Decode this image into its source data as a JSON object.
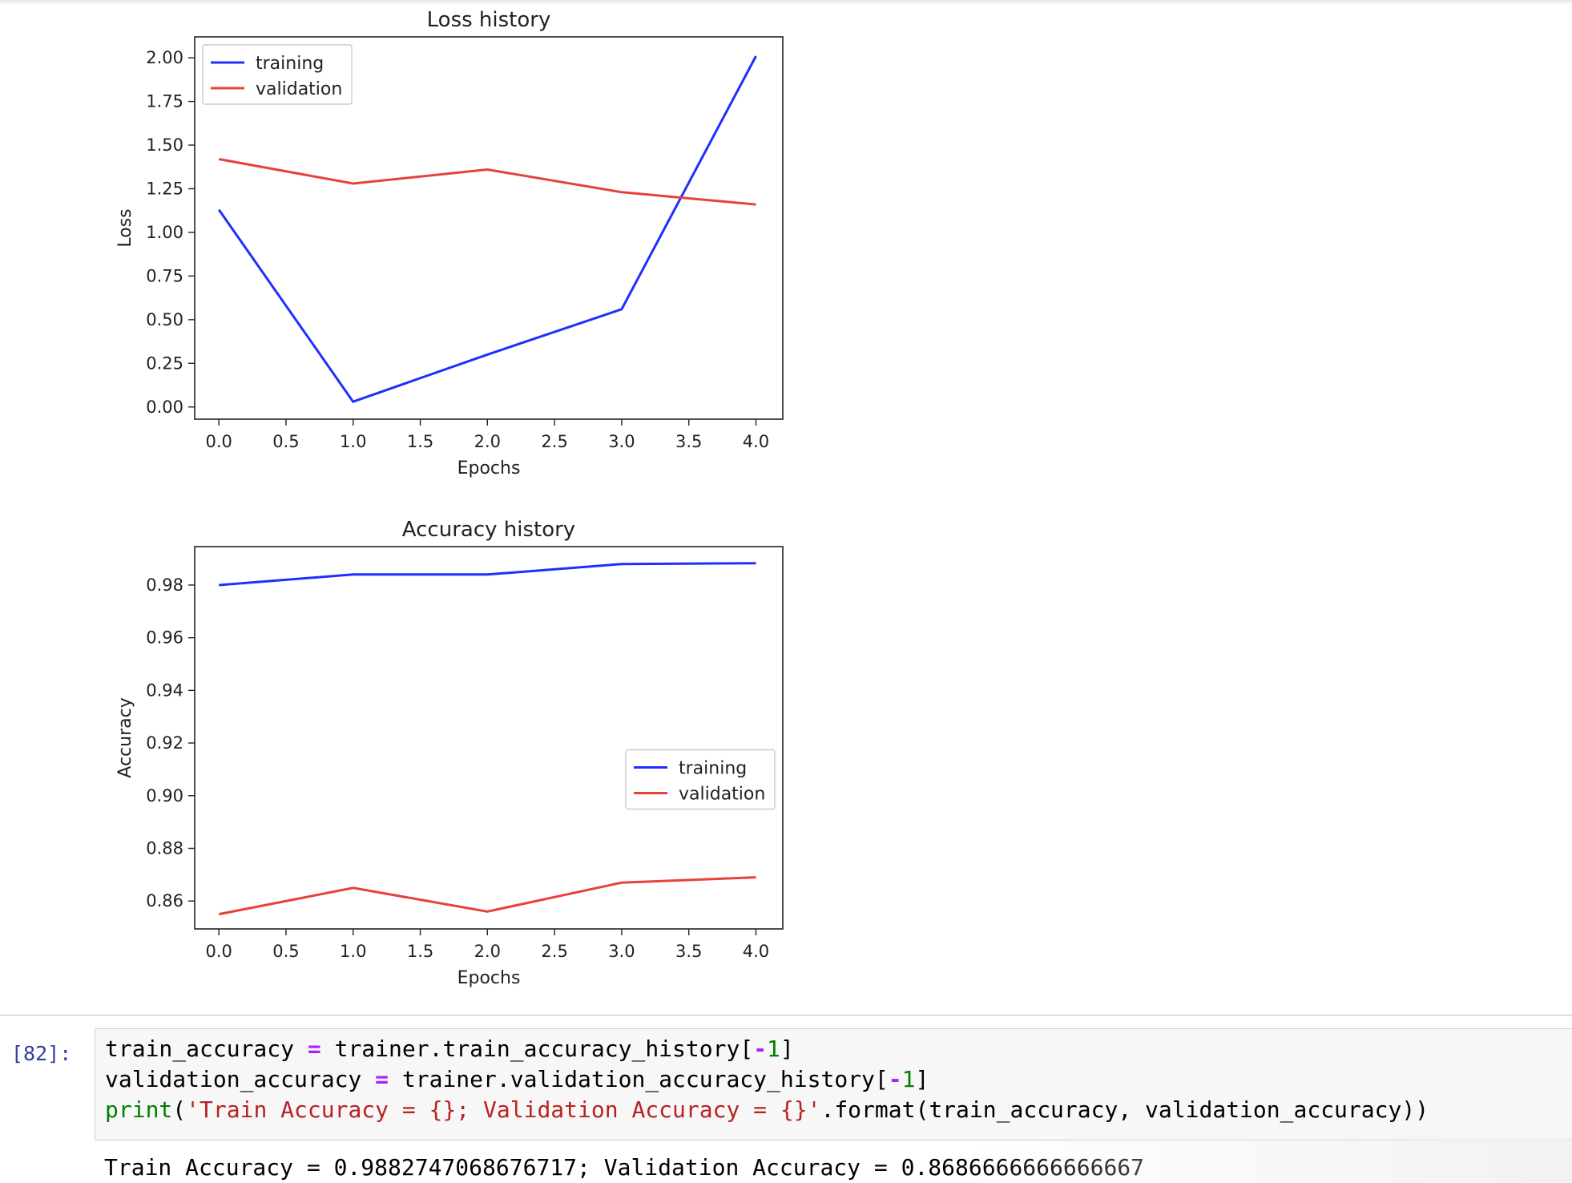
{
  "colors": {
    "training": "#1f2fff",
    "validation": "#e8413a",
    "prompt": "#303f9f"
  },
  "chart_data": [
    {
      "type": "line",
      "title": "Loss history",
      "xlabel": "Epochs",
      "ylabel": "Loss",
      "x": [
        0,
        1,
        2,
        3,
        4
      ],
      "xlim": [
        -0.18,
        4.2
      ],
      "ylim": [
        -0.07,
        2.12
      ],
      "xticks": [
        "0.0",
        "0.5",
        "1.0",
        "1.5",
        "2.0",
        "2.5",
        "3.0",
        "3.5",
        "4.0"
      ],
      "xtick_values": [
        0,
        0.5,
        1,
        1.5,
        2,
        2.5,
        3,
        3.5,
        4
      ],
      "yticks": [
        "0.00",
        "0.25",
        "0.50",
        "0.75",
        "1.00",
        "1.25",
        "1.50",
        "1.75",
        "2.00"
      ],
      "ytick_values": [
        0,
        0.25,
        0.5,
        0.75,
        1.0,
        1.25,
        1.5,
        1.75,
        2.0
      ],
      "legend": "top-left",
      "grid": false,
      "series": [
        {
          "name": "training",
          "values": [
            1.13,
            0.03,
            0.3,
            0.56,
            2.01
          ]
        },
        {
          "name": "validation",
          "values": [
            1.42,
            1.28,
            1.36,
            1.23,
            1.16
          ]
        }
      ]
    },
    {
      "type": "line",
      "title": "Accuracy history",
      "xlabel": "Epochs",
      "ylabel": "Accuracy",
      "x": [
        0,
        1,
        2,
        3,
        4
      ],
      "xlim": [
        -0.18,
        4.2
      ],
      "ylim": [
        0.8494,
        0.9946
      ],
      "xticks": [
        "0.0",
        "0.5",
        "1.0",
        "1.5",
        "2.0",
        "2.5",
        "3.0",
        "3.5",
        "4.0"
      ],
      "xtick_values": [
        0,
        0.5,
        1,
        1.5,
        2,
        2.5,
        3,
        3.5,
        4
      ],
      "yticks": [
        "0.86",
        "0.88",
        "0.90",
        "0.92",
        "0.94",
        "0.96",
        "0.98"
      ],
      "ytick_values": [
        0.86,
        0.88,
        0.9,
        0.92,
        0.94,
        0.96,
        0.98
      ],
      "legend": "center-right",
      "grid": false,
      "series": [
        {
          "name": "training",
          "values": [
            0.98,
            0.984,
            0.984,
            0.988,
            0.9883
          ]
        },
        {
          "name": "validation",
          "values": [
            0.855,
            0.865,
            0.856,
            0.867,
            0.869
          ]
        }
      ]
    }
  ],
  "cell": {
    "prompt": "[82]:",
    "line1": {
      "var": "train_accuracy",
      "op": "=",
      "expr": "trainer.train_accuracy_history[",
      "neg": "-",
      "num": "1",
      "close": "]"
    },
    "line2": {
      "var": "validation_accuracy",
      "op": "=",
      "expr": "trainer.validation_accuracy_history[",
      "neg": "-",
      "num": "1",
      "close": "]"
    },
    "line3": {
      "fn": "print",
      "open": "(",
      "str": "'Train Accuracy = {}; Validation Accuracy = {}'",
      "rest": ".format(train_accuracy, validation_accuracy))"
    },
    "output": "Train Accuracy = 0.9882747068676717; Validation Accuracy = 0.8686666666666667"
  }
}
